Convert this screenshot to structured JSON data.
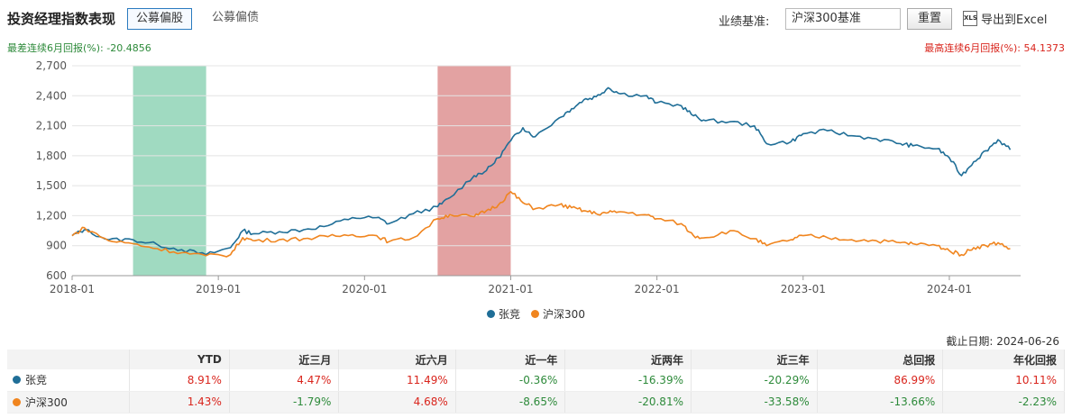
{
  "header": {
    "title": "投资经理指数表现",
    "tabs": [
      "公募偏股",
      "公募偏债"
    ],
    "bench_label": "业绩基准:",
    "bench_value": "沪深300基准",
    "reset": "重置",
    "export": "导出到Excel",
    "export_icon": "XLS"
  },
  "extremes": {
    "min": "最差连续6月回报(%): -20.4856",
    "max": "最高连续6月回报(%): 54.1373"
  },
  "chart_data": {
    "type": "line",
    "ylim": [
      600,
      2700
    ],
    "yticks": [
      "2,700",
      "2,400",
      "2,100",
      "1,800",
      "1,500",
      "1,200",
      "900",
      "600"
    ],
    "xticks": [
      "2018-01",
      "2019-01",
      "2020-01",
      "2021-01",
      "2022-01",
      "2023-01",
      "2024-01"
    ],
    "green_band": [
      "2018-06",
      "2018-12"
    ],
    "red_band": [
      "2020-07",
      "2021-01"
    ],
    "series": [
      {
        "name": "张竞",
        "color": "#1f6e97",
        "x": [
          "2018-01",
          "2018-02",
          "2018-04",
          "2018-06",
          "2018-08",
          "2018-10",
          "2018-12",
          "2019-02",
          "2019-03",
          "2019-04",
          "2019-06",
          "2019-08",
          "2019-10",
          "2019-12",
          "2020-02",
          "2020-03",
          "2020-05",
          "2020-07",
          "2020-08",
          "2020-10",
          "2020-11",
          "2020-12",
          "2021-01",
          "2021-02",
          "2021-03",
          "2021-05",
          "2021-06",
          "2021-07",
          "2021-08",
          "2021-09",
          "2021-10",
          "2021-12",
          "2022-01",
          "2022-03",
          "2022-04",
          "2022-05",
          "2022-07",
          "2022-09",
          "2022-10",
          "2022-12",
          "2023-01",
          "2023-03",
          "2023-05",
          "2023-07",
          "2023-09",
          "2023-10",
          "2023-12",
          "2024-01",
          "2024-02",
          "2024-03",
          "2024-04",
          "2024-05",
          "2024-06"
        ],
        "values": [
          1000,
          1060,
          960,
          960,
          910,
          860,
          810,
          880,
          1050,
          1020,
          1040,
          1060,
          1100,
          1180,
          1180,
          1120,
          1220,
          1290,
          1380,
          1600,
          1650,
          1780,
          1950,
          2080,
          1990,
          2180,
          2270,
          2360,
          2390,
          2480,
          2420,
          2400,
          2330,
          2300,
          2200,
          2150,
          2140,
          2100,
          1920,
          1940,
          2020,
          2050,
          2000,
          1970,
          1920,
          1900,
          1870,
          1780,
          1600,
          1740,
          1850,
          1960,
          1860
        ]
      },
      {
        "name": "沪深300",
        "color": "#f0851f",
        "x": [
          "2018-01",
          "2018-02",
          "2018-04",
          "2018-06",
          "2018-08",
          "2018-10",
          "2018-12",
          "2019-02",
          "2019-03",
          "2019-04",
          "2019-06",
          "2019-08",
          "2019-10",
          "2019-12",
          "2020-02",
          "2020-03",
          "2020-05",
          "2020-07",
          "2020-08",
          "2020-10",
          "2020-11",
          "2020-12",
          "2021-01",
          "2021-02",
          "2021-03",
          "2021-05",
          "2021-06",
          "2021-07",
          "2021-08",
          "2021-09",
          "2021-10",
          "2021-12",
          "2022-01",
          "2022-03",
          "2022-04",
          "2022-05",
          "2022-07",
          "2022-09",
          "2022-10",
          "2022-12",
          "2023-01",
          "2023-03",
          "2023-05",
          "2023-07",
          "2023-09",
          "2023-10",
          "2023-12",
          "2024-01",
          "2024-02",
          "2024-03",
          "2024-04",
          "2024-05",
          "2024-06"
        ],
        "values": [
          1000,
          1080,
          950,
          920,
          870,
          830,
          800,
          810,
          980,
          950,
          960,
          970,
          990,
          1010,
          1000,
          940,
          980,
          1170,
          1210,
          1190,
          1250,
          1310,
          1440,
          1330,
          1270,
          1310,
          1280,
          1250,
          1220,
          1230,
          1240,
          1210,
          1170,
          1120,
          1000,
          980,
          1050,
          970,
          900,
          960,
          1000,
          980,
          960,
          950,
          930,
          920,
          900,
          850,
          810,
          880,
          900,
          930,
          870
        ]
      }
    ]
  },
  "as_of": "截止日期: 2024-06-26",
  "table": {
    "headers": [
      "",
      "YTD",
      "近三月",
      "近六月",
      "近一年",
      "近两年",
      "近三年",
      "总回报",
      "年化回报"
    ],
    "rows": [
      {
        "name": "张竞",
        "color": "#1f6e97",
        "values": [
          "8.91%",
          "4.47%",
          "11.49%",
          "-0.36%",
          "-16.39%",
          "-20.29%",
          "86.99%",
          "10.11%"
        ]
      },
      {
        "name": "沪深300",
        "color": "#f0851f",
        "values": [
          "1.43%",
          "-1.79%",
          "4.68%",
          "-8.65%",
          "-20.81%",
          "-33.58%",
          "-13.66%",
          "-2.23%"
        ]
      }
    ]
  }
}
